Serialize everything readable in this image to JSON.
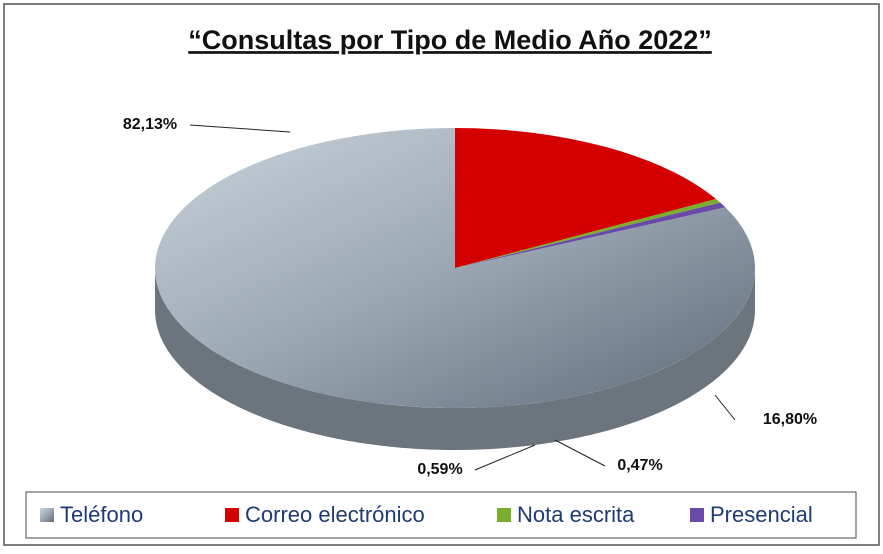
{
  "chart_data": {
    "type": "pie3d",
    "title": "“Consultas por Tipo de Medio Año 2022”",
    "categories": [
      "Teléfono",
      "Correo electrónico",
      "Nota escrita",
      "Presencial"
    ],
    "values": [
      82.13,
      16.8,
      0.47,
      0.59
    ],
    "value_labels": [
      "82,13%",
      "16,80%",
      "0,47%",
      "0,59%"
    ],
    "colors": [
      "#9aa6b2",
      "#d40000",
      "#7aae2e",
      "#6a4aa8"
    ],
    "legend": "bottom"
  }
}
